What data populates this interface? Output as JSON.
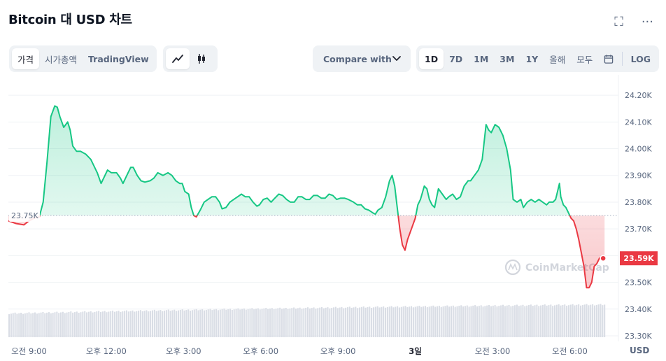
{
  "title": "Bitcoin 대 USD 차트",
  "icons": {
    "fullscreen": "fullscreen-icon",
    "more": "more-icon"
  },
  "view_tabs": [
    "가격",
    "시가총액",
    "TradingView"
  ],
  "chart_type_icons": [
    "line-chart-icon",
    "candlestick-icon"
  ],
  "compare_label": "Compare with",
  "ranges": [
    "1D",
    "7D",
    "1M",
    "3M",
    "1Y",
    "올해",
    "모두"
  ],
  "calendar_icon": "calendar-icon",
  "log_label": "LOG",
  "watermark": "CoinMarketCap",
  "colors": {
    "up": "#16c784",
    "down": "#ea3943",
    "accent": "#3861fb"
  },
  "chart_data": {
    "type": "area",
    "ylim": [
      23300,
      24250
    ],
    "yticks": [
      23300,
      23400,
      23500,
      23600,
      23700,
      23800,
      23900,
      24000,
      24100,
      24200
    ],
    "ytick_labels": [
      "23.30K",
      "23.40K",
      "23.50K",
      "23.60K",
      "23.70K",
      "23.80K",
      "23.90K",
      "24.00K",
      "24.10K",
      "24.20K"
    ],
    "reference_value": 23750,
    "reference_label": "23.75K",
    "current_value": 23590,
    "current_label": "23.59K",
    "y_unit": "USD",
    "x_ticks": [
      {
        "label": "오전 9:00",
        "h": 9
      },
      {
        "label": "오후 12:00",
        "h": 12
      },
      {
        "label": "오후 3:00",
        "h": 15
      },
      {
        "label": "오후 6:00",
        "h": 18
      },
      {
        "label": "오후 9:00",
        "h": 21
      },
      {
        "label": "3일",
        "h": 24,
        "bold": true
      },
      {
        "label": "오전 3:00",
        "h": 27
      },
      {
        "label": "오전 6:00",
        "h": 30
      }
    ],
    "xlim_hours": [
      8.2,
      31.4
    ],
    "price_series": [
      [
        8.2,
        23730
      ],
      [
        8.5,
        23720
      ],
      [
        8.8,
        23715
      ],
      [
        9.0,
        23730
      ],
      [
        9.2,
        23740
      ],
      [
        9.4,
        23745
      ],
      [
        9.55,
        23800
      ],
      [
        9.7,
        23950
      ],
      [
        9.85,
        24120
      ],
      [
        10.0,
        24160
      ],
      [
        10.1,
        24155
      ],
      [
        10.2,
        24120
      ],
      [
        10.35,
        24080
      ],
      [
        10.5,
        24100
      ],
      [
        10.6,
        24070
      ],
      [
        10.7,
        24010
      ],
      [
        10.85,
        23990
      ],
      [
        11.0,
        23990
      ],
      [
        11.2,
        23980
      ],
      [
        11.4,
        23960
      ],
      [
        11.5,
        23940
      ],
      [
        11.65,
        23910
      ],
      [
        11.8,
        23870
      ],
      [
        11.9,
        23890
      ],
      [
        12.05,
        23920
      ],
      [
        12.2,
        23910
      ],
      [
        12.4,
        23910
      ],
      [
        12.55,
        23890
      ],
      [
        12.65,
        23870
      ],
      [
        12.8,
        23900
      ],
      [
        12.95,
        23930
      ],
      [
        13.05,
        23930
      ],
      [
        13.2,
        23900
      ],
      [
        13.35,
        23880
      ],
      [
        13.5,
        23875
      ],
      [
        13.7,
        23880
      ],
      [
        13.85,
        23890
      ],
      [
        14.0,
        23910
      ],
      [
        14.2,
        23900
      ],
      [
        14.4,
        23910
      ],
      [
        14.55,
        23900
      ],
      [
        14.7,
        23880
      ],
      [
        14.85,
        23870
      ],
      [
        14.95,
        23870
      ],
      [
        15.05,
        23840
      ],
      [
        15.2,
        23830
      ],
      [
        15.3,
        23780
      ],
      [
        15.4,
        23750
      ],
      [
        15.5,
        23745
      ],
      [
        15.65,
        23770
      ],
      [
        15.8,
        23800
      ],
      [
        15.95,
        23810
      ],
      [
        16.1,
        23820
      ],
      [
        16.25,
        23820
      ],
      [
        16.4,
        23800
      ],
      [
        16.5,
        23775
      ],
      [
        16.65,
        23780
      ],
      [
        16.8,
        23800
      ],
      [
        16.95,
        23810
      ],
      [
        17.1,
        23820
      ],
      [
        17.25,
        23830
      ],
      [
        17.4,
        23820
      ],
      [
        17.55,
        23820
      ],
      [
        17.7,
        23800
      ],
      [
        17.85,
        23785
      ],
      [
        17.95,
        23790
      ],
      [
        18.1,
        23810
      ],
      [
        18.25,
        23815
      ],
      [
        18.4,
        23800
      ],
      [
        18.5,
        23810
      ],
      [
        18.7,
        23830
      ],
      [
        18.85,
        23825
      ],
      [
        19.0,
        23810
      ],
      [
        19.15,
        23800
      ],
      [
        19.3,
        23800
      ],
      [
        19.45,
        23820
      ],
      [
        19.6,
        23820
      ],
      [
        19.75,
        23810
      ],
      [
        19.9,
        23810
      ],
      [
        20.05,
        23825
      ],
      [
        20.2,
        23825
      ],
      [
        20.35,
        23815
      ],
      [
        20.5,
        23815
      ],
      [
        20.65,
        23830
      ],
      [
        20.8,
        23825
      ],
      [
        20.95,
        23810
      ],
      [
        21.1,
        23815
      ],
      [
        21.25,
        23815
      ],
      [
        21.4,
        23810
      ],
      [
        21.6,
        23800
      ],
      [
        21.75,
        23790
      ],
      [
        21.9,
        23790
      ],
      [
        22.05,
        23775
      ],
      [
        22.2,
        23770
      ],
      [
        22.35,
        23760
      ],
      [
        22.45,
        23755
      ],
      [
        22.55,
        23770
      ],
      [
        22.7,
        23780
      ],
      [
        22.85,
        23820
      ],
      [
        23.0,
        23880
      ],
      [
        23.1,
        23900
      ],
      [
        23.2,
        23860
      ],
      [
        23.3,
        23780
      ],
      [
        23.4,
        23700
      ],
      [
        23.5,
        23640
      ],
      [
        23.6,
        23620
      ],
      [
        23.7,
        23660
      ],
      [
        23.85,
        23700
      ],
      [
        24.0,
        23740
      ],
      [
        24.1,
        23790
      ],
      [
        24.2,
        23810
      ],
      [
        24.35,
        23860
      ],
      [
        24.45,
        23850
      ],
      [
        24.55,
        23810
      ],
      [
        24.65,
        23790
      ],
      [
        24.75,
        23780
      ],
      [
        24.9,
        23850
      ],
      [
        25.05,
        23830
      ],
      [
        25.2,
        23810
      ],
      [
        25.3,
        23820
      ],
      [
        25.45,
        23830
      ],
      [
        25.6,
        23810
      ],
      [
        25.75,
        23820
      ],
      [
        25.9,
        23860
      ],
      [
        26.05,
        23880
      ],
      [
        26.15,
        23880
      ],
      [
        26.3,
        23900
      ],
      [
        26.45,
        23920
      ],
      [
        26.6,
        23960
      ],
      [
        26.75,
        24090
      ],
      [
        26.85,
        24070
      ],
      [
        26.95,
        24060
      ],
      [
        27.1,
        24090
      ],
      [
        27.25,
        24080
      ],
      [
        27.4,
        24050
      ],
      [
        27.55,
        24000
      ],
      [
        27.7,
        23920
      ],
      [
        27.8,
        23810
      ],
      [
        27.95,
        23800
      ],
      [
        28.1,
        23810
      ],
      [
        28.2,
        23780
      ],
      [
        28.35,
        23800
      ],
      [
        28.5,
        23810
      ],
      [
        28.65,
        23800
      ],
      [
        28.8,
        23810
      ],
      [
        28.95,
        23800
      ],
      [
        29.1,
        23790
      ],
      [
        29.2,
        23800
      ],
      [
        29.35,
        23800
      ],
      [
        29.45,
        23810
      ],
      [
        29.55,
        23850
      ],
      [
        29.6,
        23870
      ],
      [
        29.65,
        23820
      ],
      [
        29.75,
        23790
      ],
      [
        29.85,
        23780
      ],
      [
        29.95,
        23760
      ],
      [
        30.05,
        23740
      ],
      [
        30.15,
        23730
      ],
      [
        30.25,
        23700
      ],
      [
        30.35,
        23660
      ],
      [
        30.45,
        23610
      ],
      [
        30.55,
        23560
      ],
      [
        30.65,
        23480
      ],
      [
        30.75,
        23480
      ],
      [
        30.85,
        23500
      ],
      [
        30.95,
        23560
      ],
      [
        31.05,
        23570
      ],
      [
        31.15,
        23590
      ],
      [
        31.25,
        23595
      ],
      [
        31.35,
        23590
      ]
    ]
  }
}
